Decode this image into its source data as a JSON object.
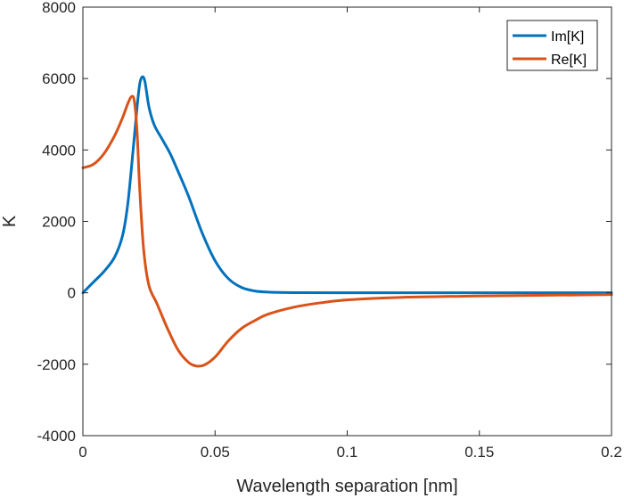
{
  "chart_data": {
    "type": "line",
    "xlabel": "Wavelength separation [nm]",
    "ylabel": "K",
    "xlim": [
      0,
      0.2
    ],
    "ylim": [
      -4000,
      8000
    ],
    "xticks": [
      0,
      0.05,
      0.1,
      0.15,
      0.2
    ],
    "xtick_labels": [
      "0",
      "0.05",
      "0.1",
      "0.15",
      "0.2"
    ],
    "yticks": [
      -4000,
      -2000,
      0,
      2000,
      4000,
      6000,
      8000
    ],
    "ytick_labels": [
      "-4000",
      "-2000",
      "0",
      "2000",
      "4000",
      "6000",
      "8000"
    ],
    "grid": false,
    "legend_position": "top-right",
    "series": [
      {
        "name": "Im[K]",
        "color": "#0072BD",
        "x": [
          0,
          0.004,
          0.008,
          0.012,
          0.015,
          0.017,
          0.019,
          0.0205,
          0.0215,
          0.0225,
          0.0235,
          0.025,
          0.027,
          0.03,
          0.033,
          0.036,
          0.04,
          0.045,
          0.05,
          0.055,
          0.06,
          0.065,
          0.07,
          0.08,
          0.1,
          0.15,
          0.2
        ],
        "values": [
          0,
          300,
          600,
          1000,
          1600,
          2500,
          4000,
          5200,
          5850,
          6050,
          5900,
          5200,
          4700,
          4300,
          3900,
          3400,
          2700,
          1700,
          900,
          400,
          150,
          50,
          20,
          5,
          0,
          0,
          0
        ]
      },
      {
        "name": "Re[K]",
        "color": "#D95319",
        "x": [
          0,
          0.004,
          0.008,
          0.012,
          0.015,
          0.017,
          0.0185,
          0.0195,
          0.0205,
          0.0215,
          0.023,
          0.025,
          0.028,
          0.032,
          0.036,
          0.04,
          0.043,
          0.046,
          0.05,
          0.055,
          0.06,
          0.065,
          0.07,
          0.08,
          0.09,
          0.1,
          0.12,
          0.15,
          0.2
        ],
        "values": [
          3500,
          3600,
          3900,
          4400,
          4900,
          5300,
          5500,
          5350,
          4500,
          2900,
          1200,
          200,
          -300,
          -1000,
          -1600,
          -1950,
          -2050,
          -2020,
          -1800,
          -1350,
          -1000,
          -780,
          -600,
          -400,
          -280,
          -200,
          -130,
          -90,
          -50
        ]
      }
    ]
  }
}
